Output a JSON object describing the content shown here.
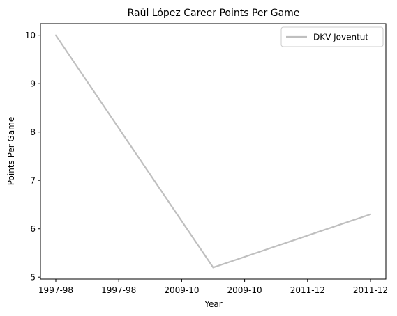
{
  "chart_data": {
    "type": "line",
    "title": "Raül López Career Points Per Game",
    "xlabel": "Year",
    "ylabel": "Points Per Game",
    "x_tick_labels": [
      "1997-98",
      "1997-98",
      "2009-10",
      "2009-10",
      "2011-12",
      "2011-12"
    ],
    "y_ticks": [
      5,
      6,
      7,
      8,
      9,
      10
    ],
    "ylim": [
      4.96,
      10.24
    ],
    "grid": false,
    "legend_position": "top-right",
    "series": [
      {
        "name": "DKV Joventut",
        "color": "#bfbfbf",
        "x_index": [
          0,
          2.5,
          5
        ],
        "values": [
          10.0,
          5.2,
          6.3
        ]
      }
    ]
  }
}
